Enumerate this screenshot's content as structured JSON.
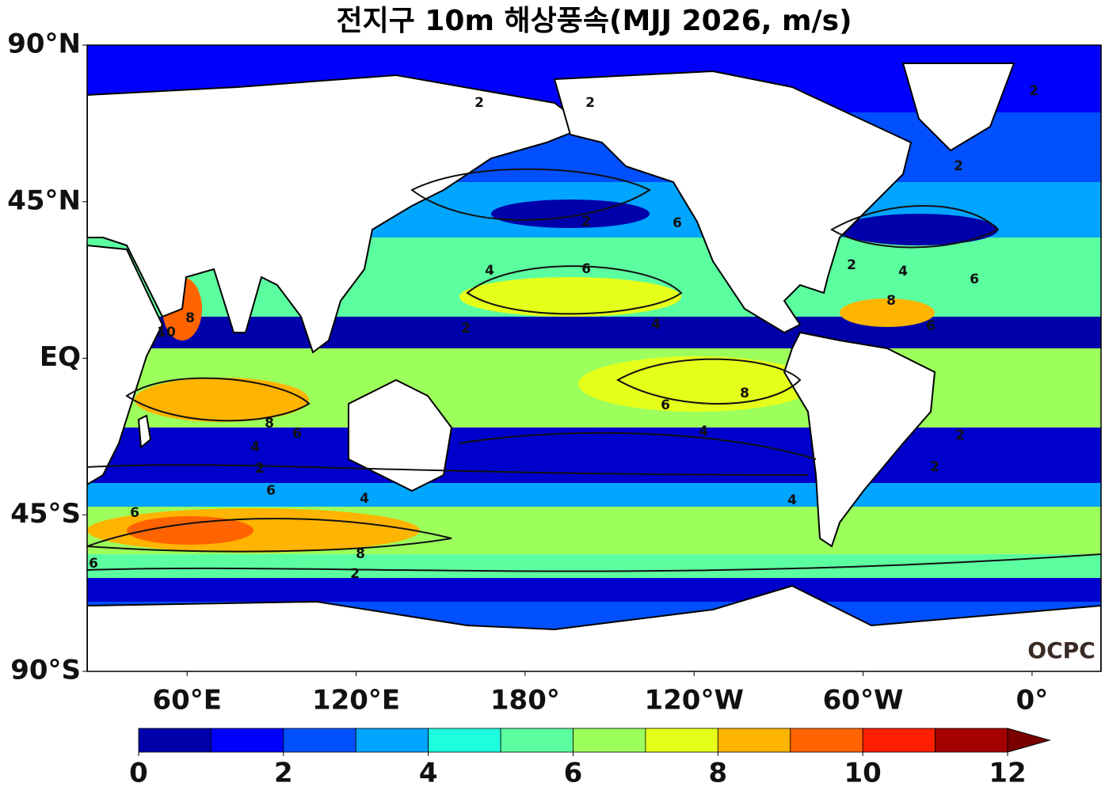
{
  "title": "전지구 10m 해상풍속(MJJ 2026, m/s)",
  "map": {
    "xlim": [
      24.5,
      384.5
    ],
    "ylim": [
      -90,
      90
    ],
    "yticks": [
      {
        "value": 90,
        "label": "90°N"
      },
      {
        "value": 45,
        "label": "45°N"
      },
      {
        "value": 0,
        "label": "EQ"
      },
      {
        "value": -45,
        "label": "45°S"
      },
      {
        "value": -90,
        "label": "90°S"
      }
    ],
    "xticks": [
      {
        "value": 60,
        "label": "60°E"
      },
      {
        "value": 120,
        "label": "120°E"
      },
      {
        "value": 180,
        "label": "180°"
      },
      {
        "value": -120,
        "label": "120°W"
      },
      {
        "value": -60,
        "label": "60°W"
      },
      {
        "value": 0,
        "label": "0°"
      }
    ],
    "contour_labels": [
      2,
      2,
      2,
      2,
      4,
      6,
      6,
      2,
      4,
      2,
      8,
      6,
      4,
      8,
      6,
      4,
      8,
      6,
      2,
      4,
      2,
      6,
      4,
      8,
      6,
      2,
      4,
      6,
      2,
      2,
      10,
      8,
      6
    ]
  },
  "colorbar": {
    "levels": [
      0,
      1,
      2,
      3,
      4,
      5,
      6,
      7,
      8,
      9,
      10,
      11,
      12
    ],
    "ticks": [
      0,
      2,
      4,
      6,
      8,
      10,
      12
    ],
    "colors": [
      "#0000aa",
      "#0000ff",
      "#0050ff",
      "#00a5ff",
      "#1effe0",
      "#5cffa0",
      "#9cff5c",
      "#e6ff1a",
      "#ffb400",
      "#ff6400",
      "#ff1e00",
      "#a50000"
    ],
    "extend_color": "#7a0000"
  },
  "logo": "OCPC"
}
